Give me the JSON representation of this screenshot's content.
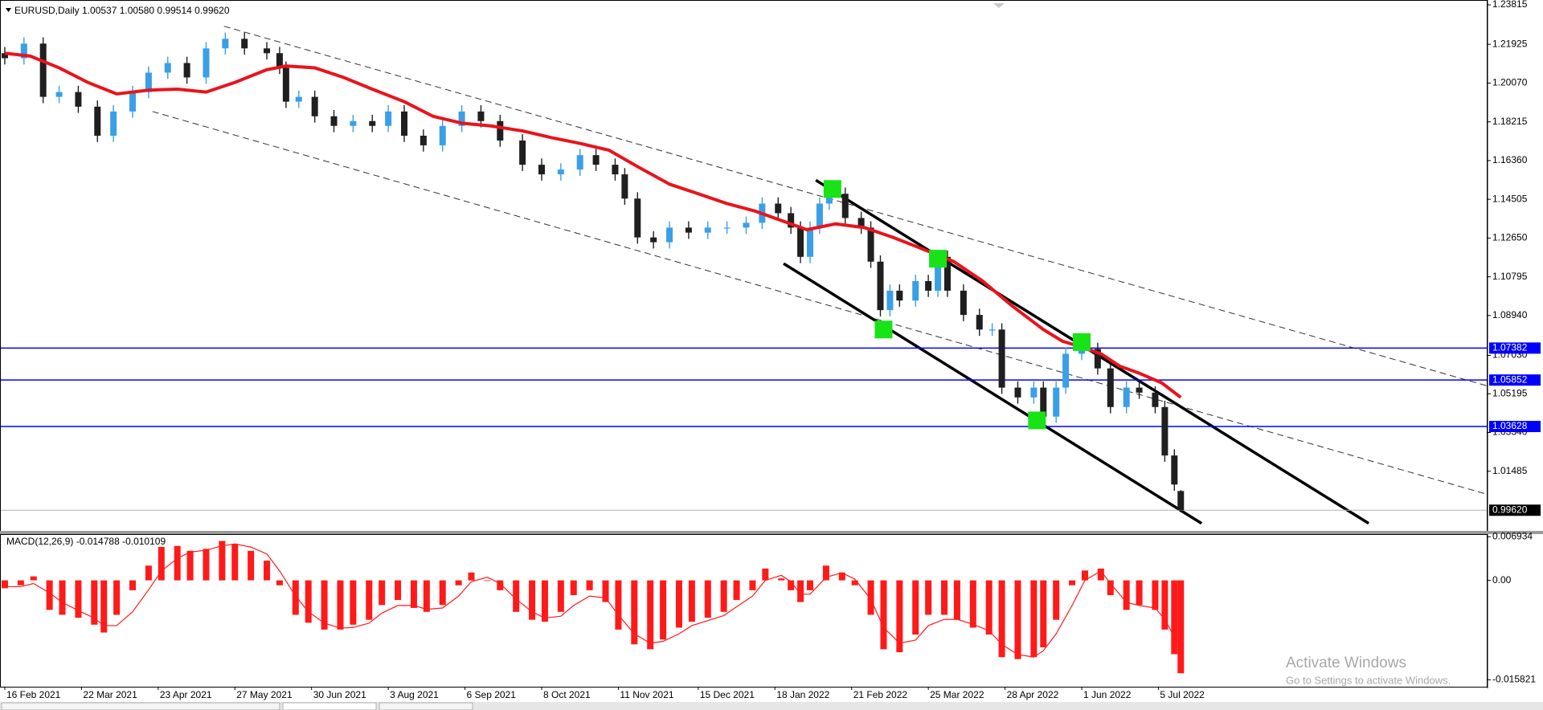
{
  "chart_data": [
    {
      "type": "candlestick",
      "title": "EURUSD,Daily  1.00537 1.00580 0.99514 0.99620",
      "xlim": [
        -1.5,
        464
      ],
      "ylim": [
        0.9863,
        1.24047
      ],
      "yticks": [
        1.23815,
        1.21925,
        {
          "value": 1.2007,
          "label": "1.20070"
        },
        1.18215,
        {
          "value": 1.1636,
          "label": "1.16360"
        },
        1.14505,
        {
          "value": 1.1265,
          "label": "1.12650"
        },
        1.10795,
        {
          "value": 1.0894,
          "label": "1.08940"
        },
        {
          "value": 1.0703,
          "label": "1.07030"
        },
        1.05195,
        {
          "value": 1.0334,
          "label": "1.03340"
        },
        1.01485
      ],
      "colors": {
        "up": "#3a9fe6",
        "down": "#1f1f1f"
      },
      "x": [
        0,
        6,
        12,
        17,
        23,
        29,
        34,
        40,
        45,
        51,
        57,
        63,
        69,
        75,
        82,
        86,
        88,
        92,
        97,
        103,
        109,
        115,
        120,
        125,
        131,
        137,
        143,
        149,
        155,
        162,
        168,
        174,
        180,
        185,
        191,
        194,
        198,
        203,
        208,
        214,
        220,
        226,
        232,
        237,
        242,
        246,
        249,
        252,
        255,
        258,
        263,
        268,
        271,
        274,
        277,
        280,
        285,
        289,
        292,
        295,
        300,
        305,
        309,
        312,
        317,
        322,
        325,
        329,
        332,
        337,
        342,
        346,
        351,
        355,
        360,
        363,
        366,
        368
      ],
      "open": [
        1.215,
        1.2126,
        1.2196,
        1.1941,
        1.1964,
        1.1894,
        1.1755,
        1.1871,
        1.1964,
        1.2057,
        1.2103,
        1.2034,
        1.2173,
        1.2219,
        1.2173,
        1.215,
        1.208,
        1.1918,
        1.1941,
        1.1848,
        1.1802,
        1.1825,
        1.1802,
        1.1871,
        1.1755,
        1.1709,
        1.1802,
        1.1871,
        1.1825,
        1.1732,
        1.1616,
        1.157,
        1.1593,
        1.1662,
        1.1616,
        1.157,
        1.1454,
        1.1268,
        1.1245,
        1.1315,
        1.1291,
        1.1315,
        1.1315,
        1.1338,
        1.143,
        1.1384,
        1.1315,
        1.1175,
        1.1315,
        1.143,
        1.1477,
        1.1361,
        1.1315,
        1.1152,
        1.092,
        1.1013,
        1.0966,
        1.1059,
        1.1013,
        1.1175,
        1.1013,
        1.0897,
        1.0827,
        1.0827,
        1.0549,
        1.0502,
        1.0549,
        1.041,
        1.0549,
        1.0711,
        1.0734,
        1.0641,
        1.0456,
        1.0549,
        1.0525,
        1.0456,
        1.0224,
        1.0054
      ],
      "high": [
        1.218,
        1.2226,
        1.2226,
        1.1994,
        1.1994,
        1.1924,
        1.1901,
        1.1994,
        1.2087,
        1.2133,
        1.2133,
        1.2203,
        1.2249,
        1.2249,
        1.2203,
        1.218,
        1.211,
        1.1971,
        1.1971,
        1.1878,
        1.1855,
        1.1855,
        1.1901,
        1.1901,
        1.1785,
        1.1832,
        1.1901,
        1.1901,
        1.1855,
        1.1762,
        1.1646,
        1.1623,
        1.1692,
        1.1692,
        1.1646,
        1.16,
        1.1484,
        1.1298,
        1.1345,
        1.1345,
        1.1345,
        1.1345,
        1.1368,
        1.146,
        1.146,
        1.1414,
        1.1345,
        1.1345,
        1.146,
        1.1507,
        1.1507,
        1.1391,
        1.1345,
        1.1182,
        1.1043,
        1.1043,
        1.1089,
        1.1089,
        1.1205,
        1.1205,
        1.1043,
        1.0927,
        1.0857,
        1.0857,
        1.0579,
        1.0579,
        1.0579,
        1.0579,
        1.0741,
        1.0764,
        1.0764,
        1.0671,
        1.0579,
        1.0579,
        1.0555,
        1.0486,
        1.0254,
        1.0058
      ],
      "low": [
        1.2096,
        1.2096,
        1.1911,
        1.1911,
        1.1864,
        1.1725,
        1.1725,
        1.1841,
        1.1934,
        1.2027,
        1.2004,
        1.2004,
        1.2143,
        1.2143,
        1.212,
        1.205,
        1.1888,
        1.1888,
        1.1818,
        1.1772,
        1.1772,
        1.1772,
        1.1772,
        1.1725,
        1.1679,
        1.1679,
        1.1772,
        1.1795,
        1.1702,
        1.1586,
        1.154,
        1.154,
        1.1563,
        1.1586,
        1.154,
        1.1424,
        1.1238,
        1.1215,
        1.1215,
        1.1261,
        1.1261,
        1.1285,
        1.1285,
        1.1308,
        1.1354,
        1.1285,
        1.1145,
        1.1145,
        1.1285,
        1.14,
        1.1331,
        1.1285,
        1.1122,
        1.089,
        1.089,
        1.0936,
        1.0936,
        1.0983,
        1.0983,
        1.0983,
        1.0867,
        1.0797,
        1.0797,
        1.0519,
        1.0472,
        1.0472,
        1.038,
        1.038,
        1.0519,
        1.0681,
        1.0611,
        1.0426,
        1.0426,
        1.0495,
        1.0426,
        1.0194,
        1.0055,
        0.99514
      ],
      "close": [
        1.2126,
        1.2196,
        1.1941,
        1.1964,
        1.1894,
        1.1755,
        1.1871,
        1.1964,
        1.2057,
        1.2103,
        1.2034,
        1.2173,
        1.2219,
        1.2173,
        1.215,
        1.208,
        1.1918,
        1.1941,
        1.1848,
        1.1802,
        1.1825,
        1.1802,
        1.1871,
        1.1755,
        1.1709,
        1.1802,
        1.1871,
        1.1825,
        1.1732,
        1.1616,
        1.157,
        1.1593,
        1.1662,
        1.1616,
        1.157,
        1.1454,
        1.1268,
        1.1245,
        1.1315,
        1.1291,
        1.1315,
        1.1315,
        1.1338,
        1.143,
        1.1384,
        1.1315,
        1.1175,
        1.1315,
        1.143,
        1.1477,
        1.1361,
        1.1315,
        1.1152,
        1.092,
        1.1013,
        1.0966,
        1.1059,
        1.1013,
        1.1175,
        1.1013,
        1.0897,
        1.0827,
        1.0827,
        1.0549,
        1.0502,
        1.0549,
        1.041,
        1.0549,
        1.0711,
        1.0734,
        1.0641,
        1.0456,
        1.0549,
        1.0525,
        1.0456,
        1.0224,
        1.0085,
        0.9962
      ],
      "ma": {
        "color": "#e8141c",
        "x": [
          0,
          8,
          17,
          26,
          35,
          45,
          54,
          63,
          72,
          82,
          88,
          97,
          106,
          115,
          125,
          134,
          143,
          152,
          162,
          171,
          180,
          189,
          198,
          208,
          217,
          226,
          235,
          245,
          251,
          260,
          269,
          278,
          288,
          297,
          306,
          315,
          325,
          331,
          337,
          343,
          349,
          355,
          362,
          368
        ],
        "values": [
          1.215,
          1.2136,
          1.208,
          1.201,
          1.1955,
          1.1973,
          1.1978,
          1.1964,
          1.201,
          1.2071,
          1.2089,
          1.208,
          1.2034,
          1.1978,
          1.1918,
          1.1848,
          1.1815,
          1.1802,
          1.1778,
          1.1746,
          1.1718,
          1.1686,
          1.1607,
          1.1523,
          1.1477,
          1.143,
          1.1393,
          1.1338,
          1.1305,
          1.1333,
          1.1315,
          1.1268,
          1.1208,
          1.1152,
          1.1059,
          1.0943,
          1.0827,
          1.0771,
          1.0743,
          1.0711,
          1.0651,
          1.0618,
          1.0572,
          1.0502
        ]
      },
      "trendlines": [
        {
          "x": [
            68.6,
            463.7
          ],
          "y": [
            1.2279,
            1.0558
          ],
          "dashed": true,
          "color": "#333333"
        },
        {
          "x": [
            46.2,
            463.7
          ],
          "y": [
            1.1871,
            1.0039
          ],
          "dashed": true,
          "color": "#333333"
        },
        {
          "x": [
            253.8,
            426.8
          ],
          "y": [
            1.1542,
            0.9899
          ],
          "dashed": false,
          "color": "#000000"
        },
        {
          "x": [
            243.7,
            374.5
          ],
          "y": [
            1.1143,
            0.9899
          ],
          "dashed": false,
          "color": "#000000"
        }
      ],
      "markers": {
        "color": "#17e317",
        "x": [
          259,
          292,
          275,
          337,
          323
        ],
        "y": [
          1.15,
          1.1166,
          1.0827,
          1.0767,
          1.0392
        ]
      },
      "levels": {
        "color": "#0000ff",
        "values": [
          1.07382,
          1.05852,
          1.03628
        ]
      },
      "last_price": {
        "value": 0.9962,
        "label": "0.99620"
      }
    },
    {
      "type": "macd",
      "title": "MACD(12,26,9) -0.014788 -0.010109",
      "xlim": [
        -1.5,
        464
      ],
      "ylim": [
        -0.01692,
        0.00736
      ],
      "yticks": [
        0.006934,
        {
          "value": 0,
          "label": "0.00"
        },
        -0.015821
      ],
      "xticks": [
        {
          "value": 0,
          "label": "16 Feb 2021"
        },
        {
          "value": 24,
          "label": "22 Mar 2021"
        },
        {
          "value": 48,
          "label": "23 Apr 2021"
        },
        {
          "value": 72,
          "label": "27 May 2021"
        },
        {
          "value": 96,
          "label": "30 Jun 2021"
        },
        {
          "value": 120,
          "label": "3 Aug 2021"
        },
        {
          "value": 144,
          "label": "6 Sep 2021"
        },
        {
          "value": 168,
          "label": "8 Oct 2021"
        },
        {
          "value": 192,
          "label": "11 Nov 2021"
        },
        {
          "value": 217,
          "label": "15 Dec 2021"
        },
        {
          "value": 241,
          "label": "18 Jan 2022"
        },
        {
          "value": 265,
          "label": "21 Feb 2022"
        },
        {
          "value": 289,
          "label": "25 Mar 2022"
        },
        {
          "value": 313,
          "label": "28 Apr 2022"
        },
        {
          "value": 337,
          "label": "1 Jun 2022"
        },
        {
          "value": 361,
          "label": "5 Jul 2022"
        }
      ],
      "x": [
        0,
        5,
        9,
        14,
        18,
        23,
        28,
        31,
        35,
        40,
        45,
        49,
        54,
        58,
        63,
        68,
        72,
        77,
        82,
        86,
        91,
        95,
        100,
        105,
        109,
        114,
        118,
        123,
        128,
        132,
        137,
        142,
        146,
        151,
        155,
        160,
        165,
        169,
        174,
        178,
        183,
        188,
        192,
        197,
        202,
        206,
        211,
        215,
        220,
        225,
        229,
        234,
        238,
        243,
        246,
        249,
        252,
        257,
        262,
        266,
        271,
        275,
        280,
        285,
        289,
        294,
        298,
        303,
        308,
        312,
        317,
        322,
        325,
        329,
        334,
        338,
        343,
        346,
        351,
        355,
        360,
        363,
        366,
        368
      ],
      "histogram": {
        "color": "#ff1a1a",
        "values": [
          -0.00125,
          -0.00078,
          0.00063,
          -0.0047,
          -0.00548,
          -0.00595,
          -0.00705,
          -0.0083,
          -0.00548,
          -0.00157,
          0.00235,
          0.00533,
          0.00548,
          0.0047,
          0.00501,
          0.00627,
          0.0058,
          0.0047,
          0.00313,
          -0.00078,
          -0.00548,
          -0.00674,
          -0.00783,
          -0.00783,
          -0.00705,
          -0.00627,
          -0.00392,
          -0.00313,
          -0.00439,
          -0.00501,
          -0.00392,
          -0.00078,
          0.00125,
          0,
          -0.00157,
          -0.00501,
          -0.00627,
          -0.00658,
          -0.00501,
          -0.00235,
          -0.00157,
          -0.00345,
          -0.00783,
          -0.01018,
          -0.01096,
          -0.0094,
          -0.00752,
          -0.00658,
          -0.00595,
          -0.00501,
          -0.00313,
          -0.00157,
          0.00188,
          0.00031,
          -0.00157,
          -0.00345,
          -0.00157,
          0.00235,
          0.00125,
          -0.00078,
          -0.00548,
          -0.01096,
          -0.01143,
          -0.00862,
          -0.00548,
          -0.00548,
          -0.00627,
          -0.00752,
          -0.00862,
          -0.01222,
          -0.01253,
          -0.01222,
          -0.01065,
          -0.00627,
          -0.00078,
          0.00157,
          0.00188,
          -0.00235,
          -0.0047,
          -0.00392,
          -0.0047,
          -0.00783,
          -0.01175,
          -0.014788
        ]
      },
      "signal": {
        "color": "#ff1a1a",
        "values": [
          -0.001,
          -0.001,
          -0.0005,
          -0.002,
          -0.0035,
          -0.0048,
          -0.006,
          -0.0072,
          -0.0072,
          -0.005,
          -0.0015,
          0.0015,
          0.0035,
          0.0045,
          0.0048,
          0.0055,
          0.0058,
          0.0053,
          0.0042,
          0.0015,
          -0.0025,
          -0.005,
          -0.0068,
          -0.0076,
          -0.0075,
          -0.0068,
          -0.0052,
          -0.004,
          -0.004,
          -0.0046,
          -0.0044,
          -0.0025,
          -0.0002,
          0.0005,
          -0.0005,
          -0.003,
          -0.005,
          -0.006,
          -0.0057,
          -0.004,
          -0.0025,
          -0.0028,
          -0.0055,
          -0.0085,
          -0.01,
          -0.0097,
          -0.0085,
          -0.0072,
          -0.0064,
          -0.0056,
          -0.0042,
          -0.0025,
          0,
          0.0008,
          -0.0002,
          -0.0022,
          -0.0022,
          0.0005,
          0.0012,
          0.0002,
          -0.003,
          -0.0075,
          -0.01,
          -0.0095,
          -0.0072,
          -0.0062,
          -0.0062,
          -0.007,
          -0.008,
          -0.0102,
          -0.0118,
          -0.0122,
          -0.0112,
          -0.0085,
          -0.004,
          0,
          0.0015,
          -0.0005,
          -0.0035,
          -0.004,
          -0.0044,
          -0.0062,
          -0.009,
          -0.010109
        ]
      }
    }
  ],
  "overlay": {
    "title": "Activate Windows",
    "subtitle": "Go to Settings to activate Windows."
  }
}
